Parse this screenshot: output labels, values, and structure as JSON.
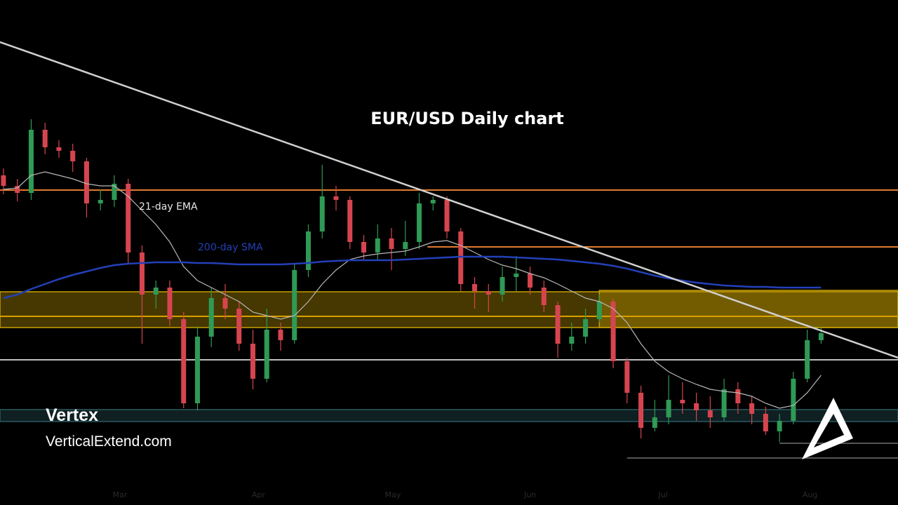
{
  "chart_data": {
    "type": "candlestick",
    "title": "EUR/USD Daily chart",
    "categories": [
      null,
      null,
      null,
      null,
      null,
      null,
      null,
      null,
      null,
      null,
      null,
      null,
      null,
      null,
      null,
      null,
      null,
      null,
      null,
      null,
      null,
      null,
      null,
      null,
      null,
      null,
      null,
      null,
      null,
      null,
      null,
      null,
      null,
      null,
      null,
      null,
      null,
      null,
      null,
      null,
      null,
      null,
      null,
      null,
      null,
      null,
      null,
      null,
      null,
      null,
      null,
      null,
      null,
      null,
      null,
      null,
      null,
      null,
      null,
      null
    ],
    "xlim": [
      -0.25,
      64.55
    ],
    "xticks": [
      {
        "value": 8.4,
        "label": "Mar"
      },
      {
        "value": 18.4,
        "label": "Apr"
      },
      {
        "value": 28.1,
        "label": "May"
      },
      {
        "value": 38,
        "label": "Jun"
      },
      {
        "value": 47.6,
        "label": "Jul"
      },
      {
        "value": 58.2,
        "label": "Aug"
      }
    ],
    "ylim": [
      1.058,
      1.13
    ],
    "up_color": "#2f9a55",
    "down_color": "#d6454f",
    "open": [
      1.105,
      1.1035,
      1.1025,
      1.1115,
      1.109,
      1.1085,
      1.107,
      1.101,
      1.1015,
      1.1038,
      1.094,
      1.088,
      1.089,
      1.0845,
      1.0725,
      1.082,
      1.0875,
      1.086,
      1.081,
      1.076,
      1.083,
      1.0815,
      1.0915,
      1.097,
      1.102,
      1.1015,
      1.0955,
      1.094,
      1.096,
      1.0945,
      1.0955,
      1.101,
      1.1015,
      1.097,
      1.0895,
      1.0885,
      1.088,
      1.0905,
      1.091,
      1.089,
      1.0865,
      1.081,
      1.082,
      1.0845,
      1.087,
      1.0785,
      1.074,
      1.069,
      1.0705,
      1.073,
      1.0725,
      1.0715,
      1.0705,
      1.0745,
      1.0725,
      1.071,
      1.0685,
      1.07,
      1.076,
      1.0815
    ],
    "high": [
      1.106,
      1.1045,
      1.113,
      1.1125,
      1.11,
      1.1095,
      1.1075,
      1.103,
      1.105,
      1.1045,
      1.095,
      1.09,
      1.09,
      1.0855,
      1.0835,
      1.089,
      1.0895,
      1.087,
      1.083,
      1.086,
      1.084,
      1.0925,
      1.098,
      1.1065,
      1.1035,
      1.102,
      1.0965,
      1.098,
      1.0975,
      1.0985,
      1.1025,
      1.102,
      1.102,
      1.0975,
      1.0905,
      1.0895,
      1.092,
      1.0935,
      1.092,
      1.09,
      1.087,
      1.084,
      1.086,
      1.088,
      1.0875,
      1.079,
      1.075,
      1.073,
      1.0765,
      1.0755,
      1.074,
      1.0735,
      1.076,
      1.0755,
      1.0735,
      1.072,
      1.071,
      1.077,
      1.083,
      1.0835
    ],
    "low": [
      1.1023,
      1.1013,
      1.1015,
      1.108,
      1.1075,
      1.1055,
      1.099,
      1.1,
      1.1005,
      1.0925,
      1.081,
      1.086,
      1.0835,
      1.0718,
      1.0715,
      1.0805,
      1.0845,
      1.08,
      1.0745,
      1.0755,
      1.08,
      1.081,
      1.0905,
      1.096,
      1.1,
      1.0945,
      1.093,
      1.093,
      1.0915,
      1.0935,
      1.0945,
      1.1,
      1.096,
      1.0885,
      1.086,
      1.0855,
      1.087,
      1.0885,
      1.088,
      1.0855,
      1.079,
      1.08,
      1.081,
      1.084,
      1.0775,
      1.0725,
      1.0675,
      1.0685,
      1.0695,
      1.071,
      1.07,
      1.069,
      1.07,
      1.071,
      1.0695,
      1.068,
      1.067,
      1.0695,
      1.0755,
      1.081
    ],
    "close": [
      1.1035,
      1.1025,
      1.1115,
      1.109,
      1.1085,
      1.107,
      1.101,
      1.1015,
      1.1038,
      1.094,
      1.088,
      1.089,
      1.0845,
      1.0725,
      1.082,
      1.0875,
      1.086,
      1.081,
      1.076,
      1.083,
      1.0815,
      1.0915,
      1.097,
      1.102,
      1.1015,
      1.0955,
      1.094,
      1.096,
      1.0945,
      1.0955,
      1.101,
      1.1015,
      1.097,
      1.0895,
      1.0885,
      1.088,
      1.0905,
      1.091,
      1.089,
      1.0865,
      1.081,
      1.082,
      1.0845,
      1.087,
      1.0785,
      1.074,
      1.069,
      1.0705,
      1.073,
      1.0725,
      1.0715,
      1.0705,
      1.0745,
      1.0725,
      1.071,
      1.0685,
      1.07,
      1.076,
      1.0815,
      1.0825
    ],
    "series": [
      {
        "name": "21-day EMA",
        "color": "#b8b8b8",
        "values": [
          1.103,
          1.1032,
          1.105,
          1.1055,
          1.105,
          1.1045,
          1.1038,
          1.1035,
          1.1035,
          1.102,
          1.1,
          1.098,
          1.0955,
          1.092,
          1.09,
          1.089,
          1.088,
          1.087,
          1.0855,
          1.085,
          1.0845,
          1.085,
          1.087,
          1.0895,
          1.0915,
          1.093,
          1.0935,
          1.0938,
          1.094,
          1.0942,
          1.0948,
          1.0955,
          1.0957,
          1.095,
          1.094,
          1.093,
          1.0922,
          1.0917,
          1.091,
          1.0904,
          1.0895,
          1.0885,
          1.0875,
          1.087,
          1.086,
          1.084,
          1.081,
          1.0785,
          1.077,
          1.076,
          1.0752,
          1.0745,
          1.0742,
          1.074,
          1.0735,
          1.0725,
          1.0718,
          1.0722,
          1.074,
          1.0765
        ]
      },
      {
        "name": "200-day SMA",
        "color": "#2340b8",
        "values": [
          1.0875,
          1.088,
          1.0888,
          1.0895,
          1.0902,
          1.0908,
          1.0913,
          1.0918,
          1.0922,
          1.0924,
          1.0925,
          1.0926,
          1.0926,
          1.0926,
          1.0925,
          1.0925,
          1.0924,
          1.0923,
          1.0923,
          1.0923,
          1.0923,
          1.0924,
          1.0925,
          1.0927,
          1.0928,
          1.0929,
          1.0929,
          1.0929,
          1.0929,
          1.093,
          1.0931,
          1.0932,
          1.0933,
          1.0934,
          1.0934,
          1.0934,
          1.0934,
          1.0933,
          1.0932,
          1.0931,
          1.093,
          1.0928,
          1.0926,
          1.0924,
          1.0921,
          1.0917,
          1.0912,
          1.0907,
          1.0903,
          1.09,
          1.0897,
          1.0895,
          1.0893,
          1.0892,
          1.0891,
          1.0891,
          1.089,
          1.089,
          1.089,
          1.089
        ]
      }
    ],
    "trendline": [
      1.124,
      1.079
    ],
    "zones": [
      {
        "range": [
          1.0833,
          1.0884
        ],
        "from": -0.25,
        "color": "#c8a000"
      },
      {
        "range": [
          1.0833,
          1.0886
        ],
        "from": 43,
        "color": "#c8a000"
      },
      {
        "range": [
          1.0699,
          1.0716
        ],
        "from": -0.25,
        "color": "#2a5a60"
      }
    ],
    "levels": [
      {
        "value": 1.1029,
        "from": -0.25,
        "color": "#e07a30"
      },
      {
        "value": 1.0948,
        "from": 30.6,
        "color": "#e07a30"
      },
      {
        "value": 1.0849,
        "from": -0.25,
        "color": "#d8a000"
      },
      {
        "value": 1.0787,
        "from": -0.25,
        "color": "#bdbdbd"
      },
      {
        "value": 1.0668,
        "from": 56,
        "color": "#555555"
      },
      {
        "value": 1.0647,
        "from": 45,
        "color": "#555555"
      }
    ]
  },
  "brand": {
    "name": "Vertex",
    "site": "VerticalExtend.com"
  }
}
